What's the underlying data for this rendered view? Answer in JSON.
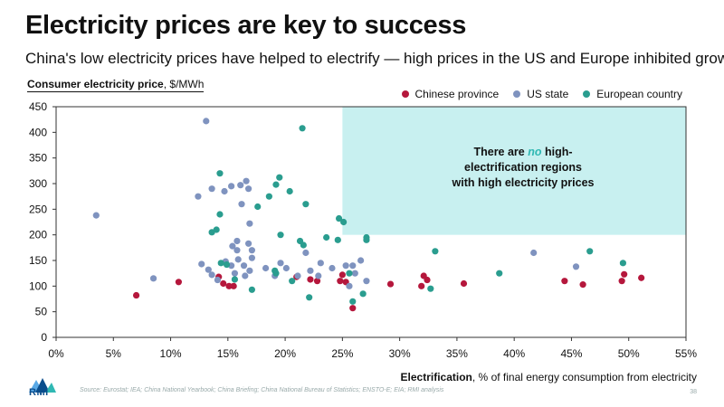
{
  "title": "Electricity prices are key to success",
  "subtitle": "China's low electricity prices have helped to electrify — high prices in the US and Europe inhibited growth",
  "source": "Source: Eurostat; IEA; China National Yearbook; China Briefing; China National Bureau of Statistics; ENSTO-E; EIA; RMI analysis",
  "page_number": "38",
  "logo_text": "RMI",
  "annotation": {
    "line1_pre": "There are ",
    "line1_em": "no",
    "line1_post": " high-",
    "line2": "electrification regions",
    "line3": "with high electricity prices"
  },
  "colors": {
    "china": "#b5173c",
    "us": "#7f93bf",
    "europe": "#2a9d8f",
    "highlight": "#c8f0f0"
  },
  "chart_data": {
    "type": "scatter",
    "title": "",
    "ylabel_bold": "Consumer electricity price",
    "ylabel_rest": ", $/MWh",
    "xlabel_bold": "Electrification",
    "xlabel_rest": ", % of final energy consumption from electricity",
    "xlim": [
      0,
      55
    ],
    "ylim": [
      0,
      450
    ],
    "x_ticks": [
      0,
      5,
      10,
      15,
      20,
      25,
      30,
      35,
      40,
      45,
      50,
      55
    ],
    "x_tick_labels": [
      "0%",
      "5%",
      "10%",
      "15%",
      "20%",
      "25%",
      "30%",
      "35%",
      "40%",
      "45%",
      "50%",
      "55%"
    ],
    "y_ticks": [
      0,
      50,
      100,
      150,
      200,
      250,
      300,
      350,
      400,
      450
    ],
    "y_tick_labels": [
      "0",
      "50",
      "100",
      "150",
      "200",
      "250",
      "300",
      "350",
      "400",
      "450"
    ],
    "highlight_region": {
      "x": [
        25,
        55
      ],
      "y": [
        200,
        450
      ]
    },
    "series": [
      {
        "name": "Chinese province",
        "color_key": "china",
        "points": [
          [
            7,
            82
          ],
          [
            10.7,
            108
          ],
          [
            14.2,
            118
          ],
          [
            14.6,
            105
          ],
          [
            15.1,
            100
          ],
          [
            15.5,
            100
          ],
          [
            21,
            118
          ],
          [
            22.2,
            113
          ],
          [
            22.8,
            110
          ],
          [
            24.8,
            110
          ],
          [
            25,
            122
          ],
          [
            25.3,
            108
          ],
          [
            25.9,
            57
          ],
          [
            29.2,
            104
          ],
          [
            32.1,
            120
          ],
          [
            32.4,
            112
          ],
          [
            31.9,
            100
          ],
          [
            35.6,
            105
          ],
          [
            44.4,
            110
          ],
          [
            46,
            103
          ],
          [
            49.4,
            110
          ],
          [
            49.6,
            123
          ],
          [
            51.1,
            116
          ]
        ]
      },
      {
        "name": "US state",
        "color_key": "us",
        "points": [
          [
            3.5,
            238
          ],
          [
            8.5,
            115
          ],
          [
            13.1,
            422
          ],
          [
            12.4,
            275
          ],
          [
            13.6,
            290
          ],
          [
            14.7,
            285
          ],
          [
            15.3,
            295
          ],
          [
            16.1,
            297
          ],
          [
            16.8,
            290
          ],
          [
            16.6,
            305
          ],
          [
            16.2,
            260
          ],
          [
            16.9,
            222
          ],
          [
            15.4,
            178
          ],
          [
            15.8,
            188
          ],
          [
            16.8,
            183
          ],
          [
            17.1,
            170
          ],
          [
            15.8,
            170
          ],
          [
            12.7,
            143
          ],
          [
            13.3,
            132
          ],
          [
            13.6,
            122
          ],
          [
            14.1,
            112
          ],
          [
            14.8,
            148
          ],
          [
            15.3,
            140
          ],
          [
            15.9,
            152
          ],
          [
            16.4,
            140
          ],
          [
            16.9,
            130
          ],
          [
            17.1,
            155
          ],
          [
            16.5,
            120
          ],
          [
            15.6,
            125
          ],
          [
            18.3,
            135
          ],
          [
            19.1,
            120
          ],
          [
            19.6,
            145
          ],
          [
            20.1,
            135
          ],
          [
            21.1,
            120
          ],
          [
            21.8,
            165
          ],
          [
            22.2,
            130
          ],
          [
            22.9,
            120
          ],
          [
            23.1,
            145
          ],
          [
            24.1,
            135
          ],
          [
            25.3,
            140
          ],
          [
            25.9,
            140
          ],
          [
            26.6,
            150
          ],
          [
            26.1,
            125
          ],
          [
            25.6,
            100
          ],
          [
            27.1,
            110
          ],
          [
            41.7,
            165
          ],
          [
            45.4,
            138
          ]
        ]
      },
      {
        "name": "European country",
        "color_key": "europe",
        "points": [
          [
            14.3,
            320
          ],
          [
            14.3,
            240
          ],
          [
            14.0,
            210
          ],
          [
            13.6,
            205
          ],
          [
            14.4,
            145
          ],
          [
            14.9,
            142
          ],
          [
            15.6,
            113
          ],
          [
            17.1,
            93
          ],
          [
            17.6,
            255
          ],
          [
            18.6,
            275
          ],
          [
            19.2,
            298
          ],
          [
            19.5,
            312
          ],
          [
            19.6,
            200
          ],
          [
            19.1,
            130
          ],
          [
            19.2,
            125
          ],
          [
            20.4,
            285
          ],
          [
            20.6,
            110
          ],
          [
            21.5,
            408
          ],
          [
            21.8,
            260
          ],
          [
            21.3,
            188
          ],
          [
            21.6,
            180
          ],
          [
            22.1,
            78
          ],
          [
            24.7,
            232
          ],
          [
            25.1,
            225
          ],
          [
            24.6,
            190
          ],
          [
            23.6,
            195
          ],
          [
            27.1,
            190
          ],
          [
            27.1,
            195
          ],
          [
            26.8,
            85
          ],
          [
            25.9,
            70
          ],
          [
            25.6,
            125
          ],
          [
            32.7,
            95
          ],
          [
            33.1,
            168
          ],
          [
            38.7,
            125
          ],
          [
            46.6,
            168
          ],
          [
            49.5,
            145
          ]
        ]
      }
    ]
  }
}
